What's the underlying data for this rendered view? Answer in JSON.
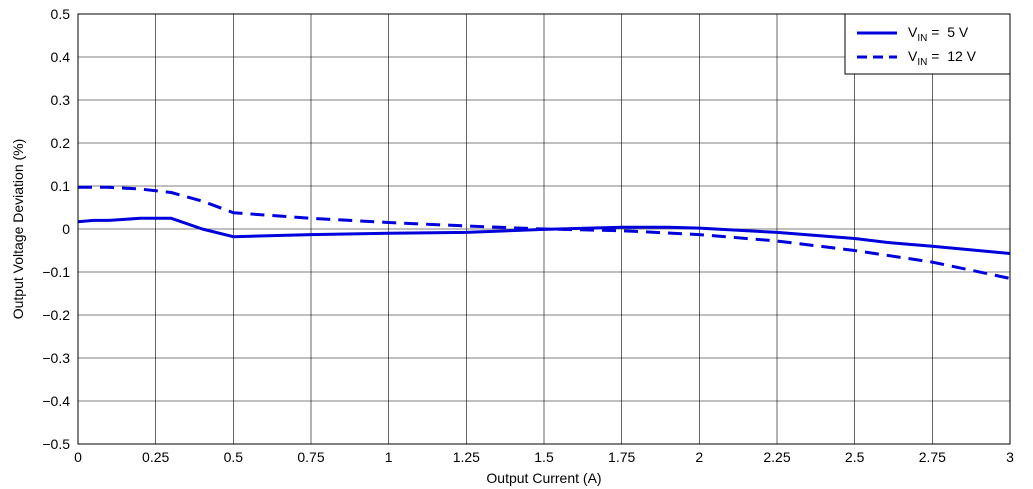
{
  "chart_data": {
    "type": "line",
    "title": "",
    "xlabel": "Output Current (A)",
    "ylabel": "Output Voltage Deviation (%)",
    "xlim": [
      0,
      3
    ],
    "ylim": [
      -0.5,
      0.5
    ],
    "x_ticks": [
      0,
      0.25,
      0.5,
      0.75,
      1,
      1.25,
      1.5,
      1.75,
      2,
      2.25,
      2.5,
      2.75,
      3
    ],
    "x_tick_labels": [
      "0",
      "0.25",
      "0.5",
      "0.75",
      "1",
      "1.25",
      "1.5",
      "1.75",
      "2",
      "2.25",
      "2.5",
      "2.75",
      "3"
    ],
    "y_ticks": [
      -0.5,
      -0.4,
      -0.3,
      -0.2,
      -0.1,
      0,
      0.1,
      0.2,
      0.3,
      0.4,
      0.5
    ],
    "y_tick_labels": [
      "−0.5",
      "−0.4",
      "−0.3",
      "−0.2",
      "−0.1",
      "0",
      "0.1",
      "0.2",
      "0.3",
      "0.4",
      "0.5"
    ],
    "grid": true,
    "legend_position": "top-right",
    "series": [
      {
        "name_main": "V",
        "name_sub": "IN",
        "name_rest": " =  5 V",
        "style": "solid",
        "color": "#0000dd",
        "x": [
          0,
          0.05,
          0.1,
          0.2,
          0.3,
          0.4,
          0.5,
          0.75,
          1,
          1.25,
          1.5,
          1.75,
          1.9,
          2,
          2.25,
          2.5,
          2.6,
          2.75,
          3
        ],
        "y": [
          0.017,
          0.02,
          0.02,
          0.025,
          0.025,
          0.0,
          -0.018,
          -0.013,
          -0.01,
          -0.008,
          -0.001,
          0.004,
          0.004,
          0.002,
          -0.008,
          -0.022,
          -0.031,
          -0.04,
          -0.057
        ]
      },
      {
        "name_main": "V",
        "name_sub": "IN",
        "name_rest": " =  12 V",
        "style": "dashed",
        "color": "#0000dd",
        "x": [
          0,
          0.05,
          0.1,
          0.2,
          0.3,
          0.4,
          0.5,
          0.75,
          1,
          1.25,
          1.5,
          1.75,
          2,
          2.25,
          2.5,
          2.75,
          3
        ],
        "y": [
          0.097,
          0.097,
          0.097,
          0.093,
          0.085,
          0.065,
          0.038,
          0.025,
          0.015,
          0.007,
          0.0,
          -0.004,
          -0.013,
          -0.028,
          -0.05,
          -0.077,
          -0.115
        ]
      }
    ]
  }
}
